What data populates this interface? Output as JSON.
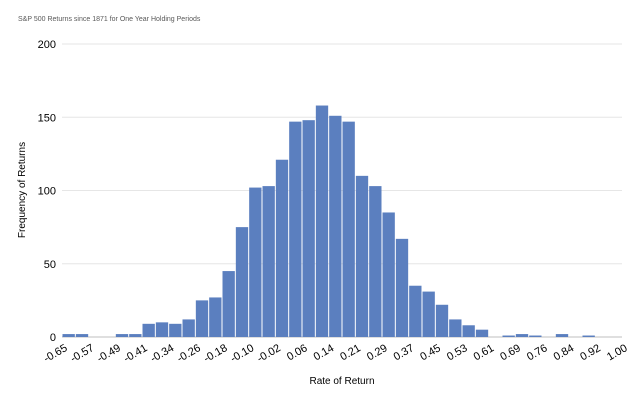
{
  "chart_data": {
    "type": "bar",
    "title": "S&P 500 Returns since 1871 for One Year Holding Periods",
    "xlabel": "Rate of Return",
    "ylabel": "Frequency of Returns",
    "ylim": [
      0,
      200
    ],
    "yticks": [
      "0",
      "50",
      "100",
      "150",
      "200"
    ],
    "xtick_labels": [
      "-0.65",
      "-0.57",
      "-0.49",
      "-0.41",
      "-0.34",
      "-0.26",
      "-0.18",
      "-0.10",
      "-0.02",
      "0.06",
      "0.14",
      "0.21",
      "0.29",
      "0.37",
      "0.45",
      "0.53",
      "0.61",
      "0.69",
      "0.76",
      "0.84",
      "0.92",
      "1.00"
    ],
    "values": [
      2,
      2,
      0,
      0,
      2,
      2,
      9,
      10,
      9,
      12,
      25,
      27,
      45,
      75,
      102,
      103,
      121,
      147,
      148,
      158,
      151,
      147,
      110,
      103,
      85,
      67,
      35,
      31,
      22,
      12,
      8,
      5,
      0,
      1,
      2,
      1,
      0,
      2,
      0,
      1,
      0,
      0
    ],
    "bar_color": "#5B7FBF",
    "grid": true,
    "legend": "none"
  }
}
